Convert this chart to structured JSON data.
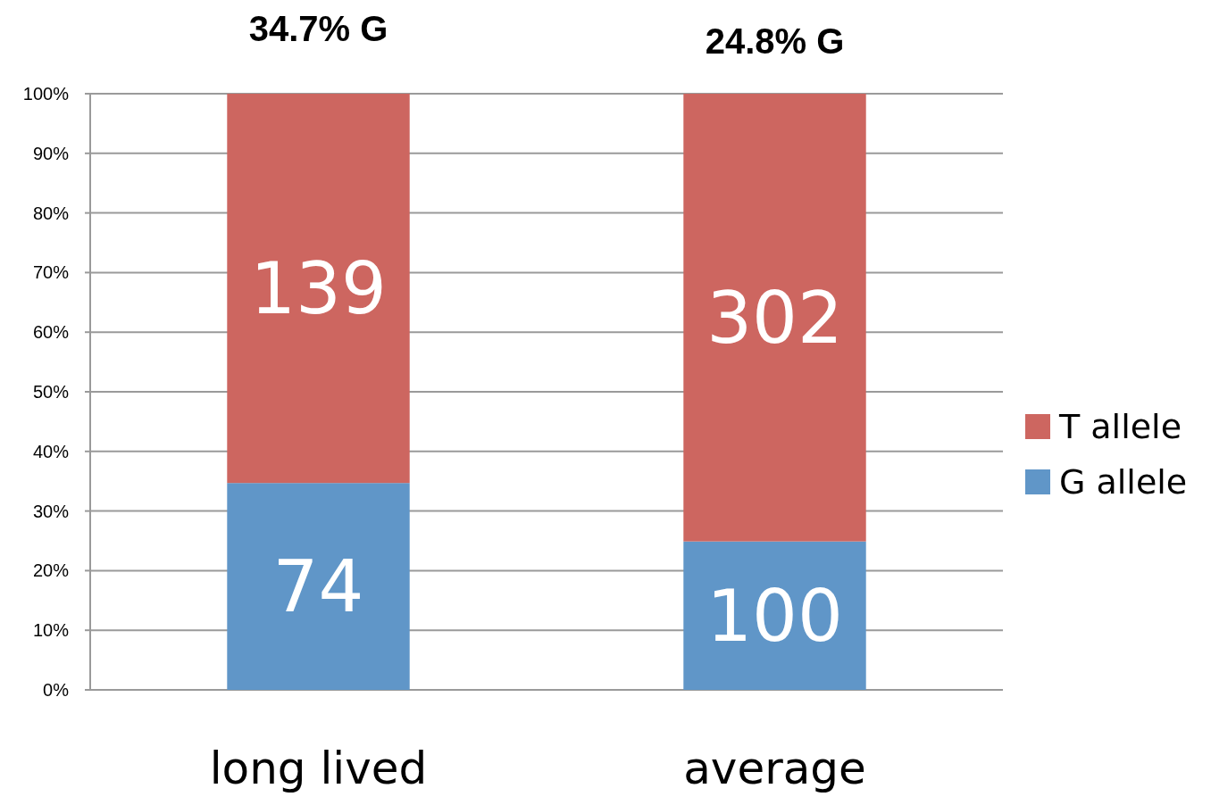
{
  "chart_data": {
    "type": "bar",
    "stacked": true,
    "categories": [
      "long lived",
      "average"
    ],
    "series": [
      {
        "name": "G allele",
        "color": "#6096c8",
        "values": [
          34.7,
          24.9
        ]
      },
      {
        "name": "T allele",
        "color": "#cd6660",
        "values": [
          65.3,
          75.1
        ]
      }
    ],
    "ylim": [
      0,
      100
    ],
    "yticks": [
      {
        "value": 0,
        "label": "0%"
      },
      {
        "value": 10,
        "label": "10%"
      },
      {
        "value": 20,
        "label": "20%"
      },
      {
        "value": 30,
        "label": "30%"
      },
      {
        "value": 40,
        "label": "40%"
      },
      {
        "value": 50,
        "label": "50%"
      },
      {
        "value": 60,
        "label": "60%"
      },
      {
        "value": 70,
        "label": "70%"
      },
      {
        "value": 80,
        "label": "80%"
      },
      {
        "value": 90,
        "label": "90%"
      },
      {
        "value": 100,
        "label": "100%"
      }
    ],
    "grid": "y",
    "legend": "right",
    "annotations": [
      {
        "text": "34.7% G",
        "x": "long lived",
        "y": 100
      },
      {
        "text": "24.8% G",
        "x": "average",
        "y": 100
      },
      "74",
      "139",
      "100",
      "302"
    ]
  }
}
